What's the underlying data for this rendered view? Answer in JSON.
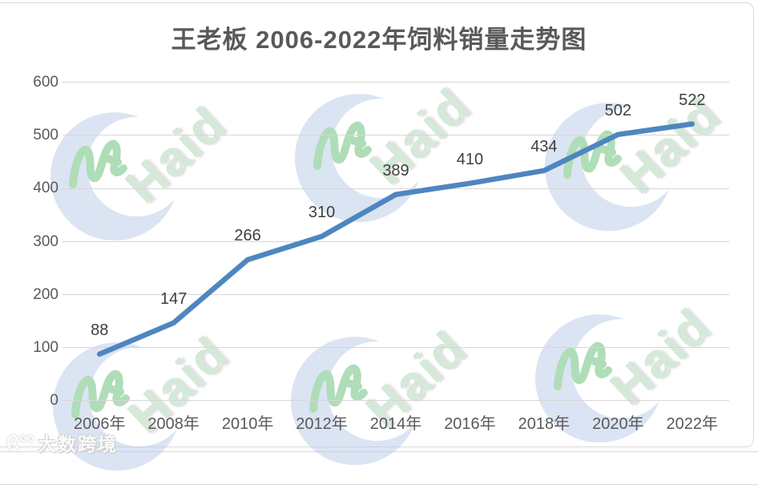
{
  "watermarks": {
    "haid": "Haid",
    "dashu": "大数跨境"
  },
  "chart_data": {
    "type": "line",
    "title": "王老板 2006-2022年饲料销量走势图",
    "categories": [
      "2006年",
      "2008年",
      "2010年",
      "2012年",
      "2014年",
      "2016年",
      "2018年",
      "2020年",
      "2022年"
    ],
    "values": [
      88,
      147,
      266,
      310,
      389,
      410,
      434,
      502,
      522
    ],
    "series_name": "饲料销量",
    "xlabel": "",
    "ylabel": "",
    "ylim": [
      0,
      600
    ],
    "yticks": [
      0,
      100,
      200,
      300,
      400,
      500,
      600
    ],
    "grid": true,
    "legend": "none",
    "line_color": "#4e86c0",
    "gridline_color": "#d6d6d6",
    "axis_text_color": "#595959",
    "data_label_color": "#3f3f3f",
    "title_color": "#595959"
  }
}
